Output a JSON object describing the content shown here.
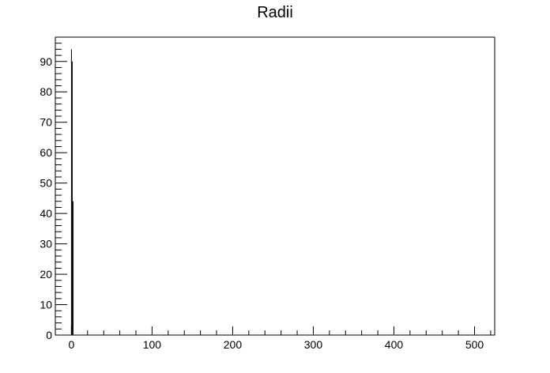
{
  "chart_data": {
    "type": "bar",
    "title": "Radii",
    "xlabel": "",
    "ylabel": "",
    "xlim": [
      -20,
      525
    ],
    "ylim": [
      0,
      98
    ],
    "x_ticks": [
      0,
      100,
      200,
      300,
      400,
      500
    ],
    "y_ticks": [
      0,
      10,
      20,
      30,
      40,
      50,
      60,
      70,
      80,
      90
    ],
    "grid": false,
    "legend": "none",
    "series": [
      {
        "x": [
          0,
          1,
          2
        ],
        "values": [
          94,
          90,
          44
        ]
      }
    ],
    "colors": {
      "axis": "#000000",
      "bars": "#000000",
      "background": "#ffffff"
    }
  }
}
